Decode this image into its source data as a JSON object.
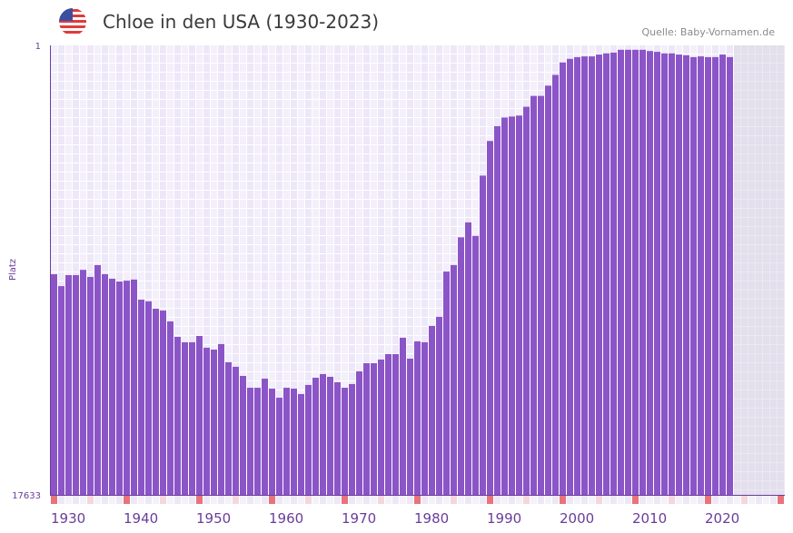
{
  "header": {
    "title": "Chloe in den USA (1930-2023)",
    "source": "Quelle: Baby-Vornamen.de",
    "flag_icon": "us-flag-icon"
  },
  "colors": {
    "bar": "#8b55c8",
    "axis": "#6a3d9a",
    "decade_marker": "#e8737a",
    "half_decade_marker": "#f5d6dd",
    "future_bg": "#e3dfec"
  },
  "chart_data": {
    "type": "bar",
    "title": "Chloe in den USA (1930-2023)",
    "xlabel": "",
    "ylabel": "Platz",
    "y_scale": "log",
    "y_reversed": true,
    "ylim": [
      1,
      17633
    ],
    "y_tick_labels": [
      "1",
      "17633"
    ],
    "x_range": [
      1930,
      2030
    ],
    "x_tick_labels": [
      "1930",
      "1940",
      "1950",
      "1960",
      "1970",
      "1980",
      "1990",
      "2000",
      "2010",
      "2020"
    ],
    "grid": true,
    "start_year": 1930,
    "values": [
      145,
      188,
      148,
      148,
      132,
      154,
      119,
      145,
      160,
      170,
      167,
      163,
      252,
      262,
      307,
      320,
      405,
      567,
      638,
      638,
      556,
      718,
      748,
      664,
      985,
      1087,
      1326,
      1715,
      1715,
      1407,
      1749,
      2129,
      1715,
      1749,
      1967,
      1615,
      1380,
      1275,
      1352,
      1523,
      1715,
      1583,
      1201,
      1005,
      1005,
      929,
      825,
      825,
      578,
      911,
      625,
      638,
      447,
      367,
      137,
      119,
      65,
      47,
      63,
      17,
      8,
      5.8,
      4.8,
      4.7,
      4.6,
      3.8,
      3.0,
      3.0,
      2.4,
      1.9,
      1.45,
      1.34,
      1.29,
      1.27,
      1.27,
      1.22,
      1.19,
      1.17,
      1.1,
      1.1,
      1.1,
      1.1,
      1.13,
      1.15,
      1.19,
      1.19,
      1.22,
      1.24,
      1.29,
      1.27,
      1.29,
      1.29,
      1.22,
      1.29
    ]
  }
}
